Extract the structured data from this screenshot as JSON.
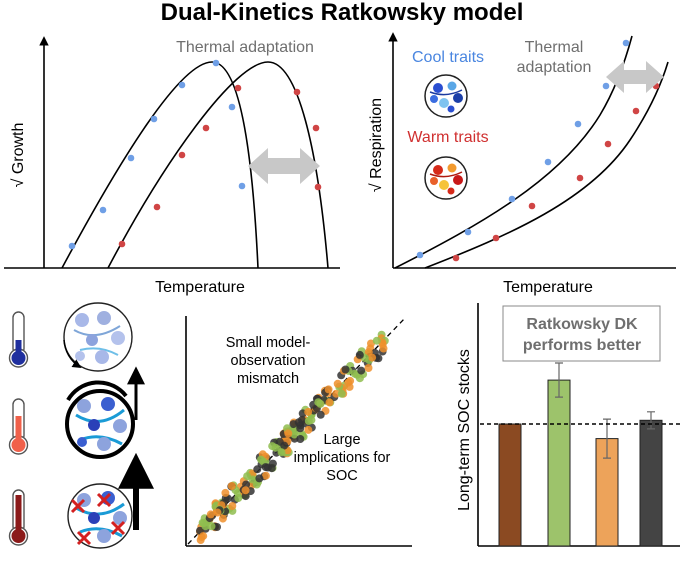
{
  "title": "Dual-Kinetics Ratkowsky model",
  "growth_panel": {
    "ylabel": "√ Growth",
    "xlabel": "Temperature",
    "annotation": "Thermal adaptation"
  },
  "respiration_panel": {
    "ylabel": "√ Respiration",
    "xlabel": "Temperature",
    "annotation_line1": "Thermal",
    "annotation_line2": "adaptation",
    "cool_label": "Cool traits",
    "warm_label": "Warm traits"
  },
  "scatter_panel": {
    "note1_line1": "Small model-",
    "note1_line2": "observation",
    "note1_line3": "mismatch",
    "note2_line1": "Large",
    "note2_line2": "implications for",
    "note2_line3": "SOC"
  },
  "bar_panel": {
    "ylabel": "Long-term SOC stocks",
    "legend_line1": "Ratkowsky DK",
    "legend_line2": "performs better"
  },
  "colors": {
    "cool": "#6f9fe6",
    "warm": "#d04545",
    "orange": "#ef8f2b",
    "green": "#8fbd4f",
    "black": "#333333",
    "brown": "#8b4a22",
    "bar_green": "#9dc36b",
    "bar_orange": "#eda35a",
    "bar_dark": "#444444"
  },
  "chart_data": [
    {
      "type": "line",
      "series": [
        {
          "values": [
            0.05,
            0.2,
            0.4,
            0.58,
            0.8,
            0.95,
            0.9,
            0.45
          ]
        },
        {
          "values": [
            0.1,
            0.25,
            0.45,
            0.6,
            0.78,
            0.9,
            0.82,
            0.4
          ]
        }
      ]
    },
    {
      "type": "line",
      "series": [
        {
          "values": [
            0.05,
            0.15,
            0.3,
            0.5,
            0.72,
            0.95
          ]
        },
        {
          "values": [
            0.03,
            0.1,
            0.25,
            0.43,
            0.62,
            0.82
          ]
        }
      ]
    },
    {
      "type": "bar",
      "values": [
        1.0,
        1.36,
        0.88,
        1.03
      ],
      "errors": [
        0,
        0.14,
        0.16,
        0.07
      ]
    }
  ]
}
